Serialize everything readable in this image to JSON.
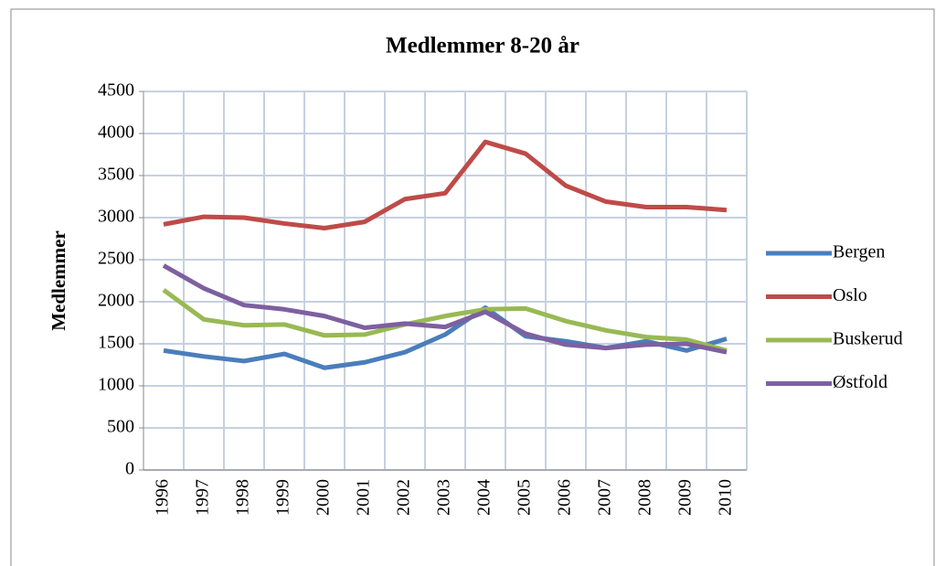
{
  "chart_data": {
    "type": "line",
    "title": "Medlemmer 8-20 år",
    "y_label": "Medlemmer",
    "categories": [
      "1996",
      "1997",
      "1998",
      "1999",
      "2000",
      "2001",
      "2002",
      "2003",
      "2004",
      "2005",
      "2006",
      "2007",
      "2008",
      "2009",
      "2010"
    ],
    "series": [
      {
        "name": "Bergen",
        "color": "#4a7ebb",
        "values": [
          1420,
          1350,
          1295,
          1380,
          1215,
          1280,
          1400,
          1610,
          1930,
          1590,
          1530,
          1450,
          1530,
          1420,
          1560
        ]
      },
      {
        "name": "Oslo",
        "color": "#be4b48",
        "values": [
          2920,
          3010,
          3000,
          2930,
          2875,
          2950,
          3220,
          3290,
          3900,
          3760,
          3380,
          3190,
          3125,
          3125,
          3090
        ]
      },
      {
        "name": "Buskerud",
        "color": "#98b954",
        "values": [
          2140,
          1790,
          1720,
          1730,
          1600,
          1610,
          1730,
          1830,
          1910,
          1920,
          1770,
          1660,
          1580,
          1550,
          1420
        ]
      },
      {
        "name": "Østfold",
        "color": "#7d60a0",
        "values": [
          2430,
          2160,
          1960,
          1910,
          1830,
          1690,
          1740,
          1700,
          1880,
          1620,
          1490,
          1450,
          1490,
          1500,
          1400
        ]
      }
    ],
    "ylim": [
      0,
      4500
    ],
    "yticks": [
      0,
      500,
      1000,
      1500,
      2000,
      2500,
      3000,
      3500,
      4000,
      4500
    ],
    "grid": true,
    "legend": "right"
  }
}
